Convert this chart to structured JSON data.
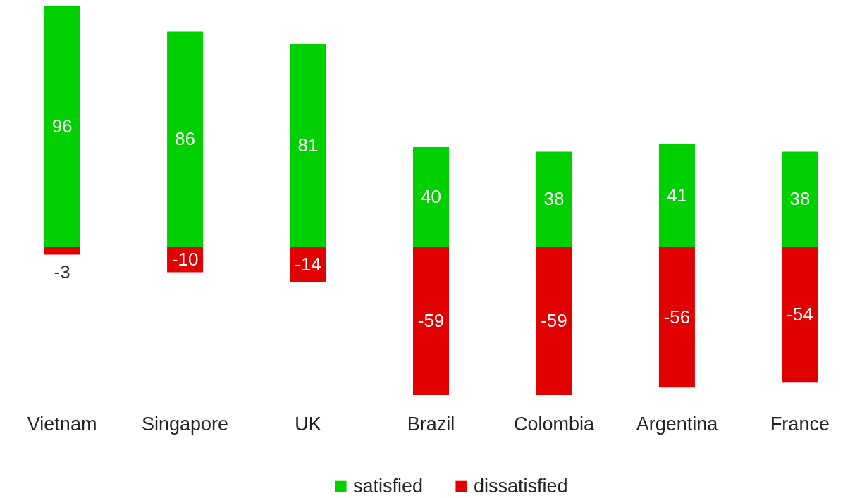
{
  "chart_data": {
    "type": "bar",
    "stacked": true,
    "data_labels": true,
    "legend": "bottom",
    "categories": [
      "Vietnam",
      "Singapore",
      "UK",
      "Brazil",
      "Colombia",
      "Argentina",
      "France"
    ],
    "series": [
      {
        "name": "satisfied",
        "color": "#00d000",
        "values": [
          96,
          86,
          81,
          40,
          38,
          41,
          38
        ]
      },
      {
        "name": "dissatisfied",
        "color": "#e00000",
        "values": [
          -3,
          -10,
          -14,
          -59,
          -59,
          -56,
          -54
        ]
      }
    ]
  }
}
